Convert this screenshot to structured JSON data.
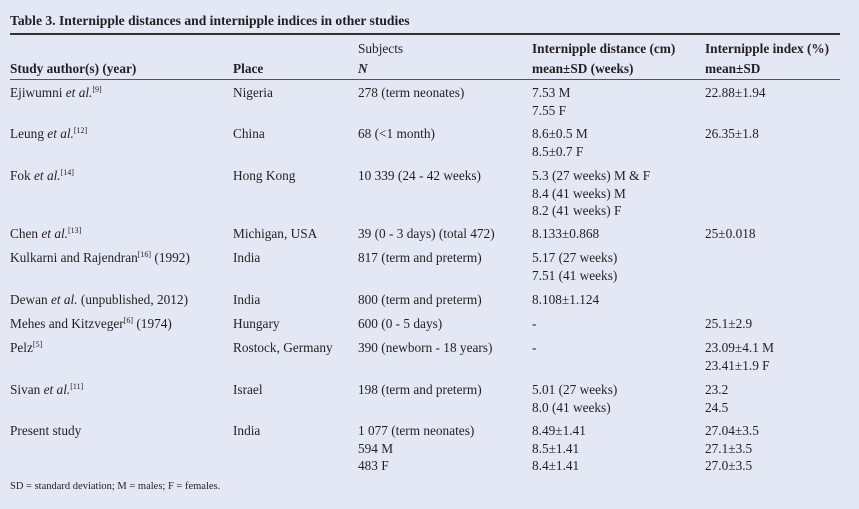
{
  "title": "Table 3. Internipple distances and internipple indices in other studies",
  "headers": {
    "author": "Study author(s) (year)",
    "place": "Place",
    "subjects_1": "Subjects",
    "subjects_2": "N",
    "distance_1": "Internipple distance (cm)",
    "distance_2": "mean±SD (weeks)",
    "index_1": "Internipple index (%)",
    "index_2": "mean±SD"
  },
  "rows": [
    {
      "name": "Ejiwumni ",
      "etal": "et al.",
      "ref": "[9]",
      "suffix": "",
      "place": "Nigeria",
      "subjects": [
        "278 (term neonates)"
      ],
      "distance": [
        "7.53 M",
        "7.55 F"
      ],
      "index": [
        "22.88±1.94"
      ]
    },
    {
      "name": "Leung ",
      "etal": "et al.",
      "ref": "[12]",
      "suffix": "",
      "place": "China",
      "subjects": [
        "68 (<1 month)"
      ],
      "distance": [
        "8.6±0.5 M",
        "8.5±0.7 F"
      ],
      "index": [
        "26.35±1.8"
      ]
    },
    {
      "name": "Fok ",
      "etal": "et al.",
      "ref": "[14]",
      "suffix": "",
      "place": "Hong Kong",
      "subjects": [
        "10 339 (24 - 42 weeks)"
      ],
      "distance": [
        "5.3 (27 weeks) M & F",
        "8.4 (41 weeks) M",
        "8.2 (41 weeks) F"
      ],
      "index": []
    },
    {
      "name": "Chen ",
      "etal": "et al.",
      "ref": "[13]",
      "suffix": "",
      "place": "Michigan, USA",
      "subjects": [
        "39 (0 - 3 days) (total 472)"
      ],
      "distance": [
        "8.133±0.868"
      ],
      "index": [
        "25±0.018"
      ]
    },
    {
      "name": "Kulkarni and Rajendran",
      "etal": "",
      "ref": "[16]",
      "suffix": " (1992)",
      "place": "India",
      "subjects": [
        "817 (term and preterm)"
      ],
      "distance": [
        "5.17 (27 weeks)",
        "7.51 (41 weeks)"
      ],
      "index": []
    },
    {
      "name": "Dewan ",
      "etal": "et al.",
      "ref": "",
      "suffix": " (unpublished, 2012)",
      "place": "India",
      "subjects": [
        "800 (term and preterm)"
      ],
      "distance": [
        "8.108±1.124"
      ],
      "index": []
    },
    {
      "name": "Mehes and Kitzveger",
      "etal": "",
      "ref": "[6]",
      "suffix": " (1974)",
      "place": "Hungary",
      "subjects": [
        "600 (0 - 5 days)"
      ],
      "distance": [
        "-"
      ],
      "index": [
        "25.1±2.9"
      ]
    },
    {
      "name": "Pelz",
      "etal": "",
      "ref": "[5]",
      "suffix": "",
      "place": "Rostock, Germany",
      "subjects": [
        "390 (newborn - 18 years)"
      ],
      "distance": [
        "-"
      ],
      "index": [
        "23.09±4.1 M",
        "23.41±1.9 F"
      ]
    },
    {
      "name": "Sivan ",
      "etal": "et al.",
      "ref": "[11]",
      "suffix": "",
      "place": "Israel",
      "subjects": [
        "198 (term and preterm)"
      ],
      "distance": [
        "5.01 (27 weeks)",
        "8.0 (41 weeks)"
      ],
      "index": [
        "23.2",
        "24.5"
      ]
    },
    {
      "name": "Present study",
      "etal": "",
      "ref": "",
      "suffix": "",
      "place": "India",
      "subjects": [
        "1 077 (term neonates)",
        "594 M",
        "483 F"
      ],
      "distance": [
        "8.49±1.41",
        "8.5±1.41",
        "8.4±1.41"
      ],
      "index": [
        "27.04±3.5",
        "27.1±3.5",
        "27.0±3.5"
      ]
    }
  ],
  "footnote": "SD = standard deviation; M = males; F = females."
}
